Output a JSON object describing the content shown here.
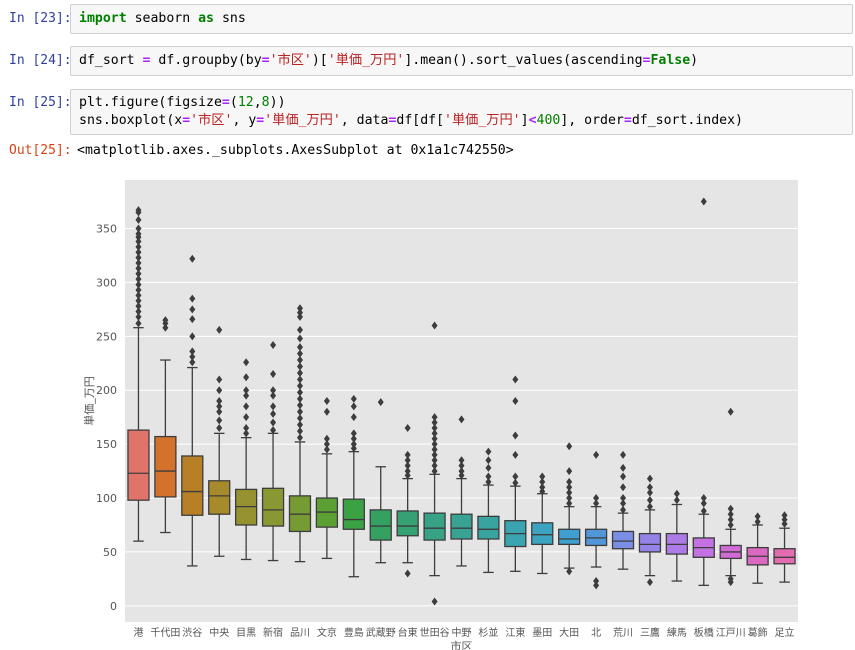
{
  "cells": [
    {
      "prompt": "In [23]:",
      "tokens": [
        {
          "t": "import",
          "c": "kw"
        },
        {
          "t": " seaborn ",
          "c": ""
        },
        {
          "t": "as",
          "c": "kw"
        },
        {
          "t": " sns",
          "c": ""
        }
      ]
    },
    {
      "prompt": "In [24]:",
      "tokens": [
        {
          "t": "df_sort ",
          "c": ""
        },
        {
          "t": "=",
          "c": "op"
        },
        {
          "t": " df.groupby(by",
          "c": ""
        },
        {
          "t": "=",
          "c": "op"
        },
        {
          "t": "'市区'",
          "c": "str"
        },
        {
          "t": ")[",
          "c": ""
        },
        {
          "t": "'単価_万円'",
          "c": "str"
        },
        {
          "t": "].mean().sort_values(ascending",
          "c": ""
        },
        {
          "t": "=",
          "c": "op"
        },
        {
          "t": "False",
          "c": "kw"
        },
        {
          "t": ")",
          "c": ""
        }
      ]
    },
    {
      "prompt": "In [25]:",
      "tokens": [
        {
          "t": "plt.figure(figsize",
          "c": ""
        },
        {
          "t": "=",
          "c": "op"
        },
        {
          "t": "(",
          "c": ""
        },
        {
          "t": "12",
          "c": "num"
        },
        {
          "t": ",",
          "c": ""
        },
        {
          "t": "8",
          "c": "num"
        },
        {
          "t": "))",
          "c": ""
        },
        {
          "t": "\n",
          "c": ""
        },
        {
          "t": "sns.boxplot(x",
          "c": ""
        },
        {
          "t": "=",
          "c": "op"
        },
        {
          "t": "'市区'",
          "c": "str"
        },
        {
          "t": ", y",
          "c": ""
        },
        {
          "t": "=",
          "c": "op"
        },
        {
          "t": "'単価_万円'",
          "c": "str"
        },
        {
          "t": ", data",
          "c": ""
        },
        {
          "t": "=",
          "c": "op"
        },
        {
          "t": "df[df[",
          "c": ""
        },
        {
          "t": "'単価_万円'",
          "c": "str"
        },
        {
          "t": "]",
          "c": ""
        },
        {
          "t": "<",
          "c": "op"
        },
        {
          "t": "400",
          "c": "num"
        },
        {
          "t": "], order",
          "c": ""
        },
        {
          "t": "=",
          "c": "op"
        },
        {
          "t": "df_sort.index)",
          "c": ""
        }
      ]
    }
  ],
  "output": {
    "prompt": "Out[25]:",
    "text": "<matplotlib.axes._subplots.AxesSubplot at 0x1a1c742550>"
  },
  "colors": {
    "prompt_in": "#303f9f",
    "prompt_out": "#d84315",
    "plot_bg": "#e5e5e5",
    "grid": "#ffffff"
  },
  "chart_data": {
    "type": "box",
    "xlabel": "市区",
    "ylabel": "単価_万円",
    "ylim": [
      -15,
      395
    ],
    "yticks": [
      0,
      50,
      100,
      150,
      200,
      250,
      300,
      350
    ],
    "grid": true,
    "categories": [
      "港",
      "千代田",
      "渋谷",
      "中央",
      "目黒",
      "新宿",
      "品川",
      "文京",
      "豊島",
      "武蔵野",
      "台東",
      "世田谷",
      "中野",
      "杉並",
      "江東",
      "墨田",
      "大田",
      "北",
      "荒川",
      "三鷹",
      "練馬",
      "板橋",
      "江戸川",
      "葛飾",
      "足立"
    ],
    "boxes": [
      {
        "min": 60,
        "q1": 98,
        "median": 123,
        "q3": 163,
        "max": 258,
        "color": "#e1746a",
        "outliers": [
          262,
          268,
          273,
          278,
          283,
          288,
          293,
          298,
          303,
          308,
          313,
          318,
          323,
          328,
          333,
          338,
          342,
          345,
          350,
          358,
          365,
          367
        ]
      },
      {
        "min": 68,
        "q1": 101,
        "median": 125,
        "q3": 157,
        "max": 228,
        "color": "#d3722a",
        "outliers": [
          258,
          262,
          265
        ]
      },
      {
        "min": 37,
        "q1": 84,
        "median": 106,
        "q3": 139,
        "max": 221,
        "color": "#b77f26",
        "outliers": [
          226,
          231,
          236,
          250,
          266,
          275,
          285,
          322
        ]
      },
      {
        "min": 46,
        "q1": 85,
        "median": 102,
        "q3": 116,
        "max": 160,
        "color": "#a68a2b",
        "outliers": [
          165,
          172,
          180,
          185,
          190,
          200,
          210,
          256
        ]
      },
      {
        "min": 43,
        "q1": 75,
        "median": 92,
        "q3": 108,
        "max": 156,
        "color": "#979230",
        "outliers": [
          160,
          165,
          175,
          185,
          195,
          200,
          212,
          226
        ]
      },
      {
        "min": 42,
        "q1": 74,
        "median": 89,
        "q3": 109,
        "max": 160,
        "color": "#8a9833",
        "outliers": [
          163,
          170,
          178,
          185,
          195,
          200,
          215,
          242
        ]
      },
      {
        "min": 41,
        "q1": 69,
        "median": 85,
        "q3": 102,
        "max": 152,
        "color": "#779b33",
        "outliers": [
          156,
          162,
          168,
          174,
          180,
          186,
          192,
          198,
          204,
          210,
          216,
          222,
          228,
          234,
          240,
          248,
          256,
          268,
          272,
          276
        ]
      },
      {
        "min": 44,
        "q1": 73,
        "median": 87,
        "q3": 100,
        "max": 141,
        "color": "#5ca033",
        "outliers": [
          145,
          150,
          155,
          180,
          190
        ]
      },
      {
        "min": 27,
        "q1": 71,
        "median": 80,
        "q3": 99,
        "max": 143,
        "color": "#3ba244",
        "outliers": [
          146,
          150,
          155,
          160,
          175,
          185,
          192
        ]
      },
      {
        "min": 40,
        "q1": 61,
        "median": 74,
        "q3": 89,
        "max": 129,
        "color": "#34a160",
        "outliers": [
          189
        ]
      },
      {
        "min": 40,
        "q1": 65,
        "median": 74,
        "q3": 88,
        "max": 118,
        "color": "#36a274",
        "outliers": [
          30,
          121,
          125,
          130,
          135,
          140,
          165
        ]
      },
      {
        "min": 28,
        "q1": 61,
        "median": 72,
        "q3": 86,
        "max": 122,
        "color": "#37a284",
        "outliers": [
          4,
          125,
          130,
          135,
          140,
          145,
          150,
          155,
          160,
          165,
          170,
          175,
          260
        ]
      },
      {
        "min": 37,
        "q1": 62,
        "median": 72,
        "q3": 85,
        "max": 118,
        "color": "#38a392",
        "outliers": [
          121,
          125,
          130,
          135,
          173
        ]
      },
      {
        "min": 31,
        "q1": 62,
        "median": 71,
        "q3": 83,
        "max": 112,
        "color": "#39a3a0",
        "outliers": [
          115,
          120,
          128,
          135,
          143
        ]
      },
      {
        "min": 32,
        "q1": 55,
        "median": 67,
        "q3": 79,
        "max": 111,
        "color": "#3aa4b0",
        "outliers": [
          114,
          120,
          140,
          158,
          190,
          210
        ]
      },
      {
        "min": 30,
        "q1": 57,
        "median": 66,
        "q3": 77,
        "max": 104,
        "color": "#3ca3c0",
        "outliers": [
          106,
          110,
          115,
          120
        ]
      },
      {
        "min": 35,
        "q1": 57,
        "median": 62,
        "q3": 71,
        "max": 92,
        "color": "#3e9fd0",
        "outliers": [
          32,
          95,
          100,
          105,
          110,
          115,
          125,
          148
        ]
      },
      {
        "min": 36,
        "q1": 56,
        "median": 63,
        "q3": 71,
        "max": 92,
        "color": "#5096d8",
        "outliers": [
          19,
          23,
          95,
          100,
          140
        ]
      },
      {
        "min": 34,
        "q1": 53,
        "median": 60,
        "q3": 69,
        "max": 86,
        "color": "#7b8ee6",
        "outliers": [
          89,
          95,
          100,
          110,
          120,
          128,
          140
        ]
      },
      {
        "min": 28,
        "q1": 50,
        "median": 57,
        "q3": 67,
        "max": 89,
        "color": "#9683ea",
        "outliers": [
          22,
          92,
          98,
          105,
          110,
          118
        ]
      },
      {
        "min": 23,
        "q1": 48,
        "median": 57,
        "q3": 67,
        "max": 94,
        "color": "#ad7ae7",
        "outliers": [
          98,
          104
        ]
      },
      {
        "min": 19,
        "q1": 45,
        "median": 54,
        "q3": 63,
        "max": 85,
        "color": "#c471e3",
        "outliers": [
          88,
          95,
          100,
          375
        ]
      },
      {
        "min": 28,
        "q1": 44,
        "median": 50,
        "q3": 56,
        "max": 71,
        "color": "#d16bd6",
        "outliers": [
          22,
          25,
          75,
          80,
          85,
          90,
          180
        ]
      },
      {
        "min": 21,
        "q1": 38,
        "median": 46,
        "q3": 54,
        "max": 75,
        "color": "#db69c2",
        "outliers": [
          78,
          83
        ]
      },
      {
        "min": 22,
        "q1": 39,
        "median": 45,
        "q3": 53,
        "max": 72,
        "color": "#e36bb0",
        "outliers": [
          76,
          80,
          84
        ]
      }
    ]
  }
}
